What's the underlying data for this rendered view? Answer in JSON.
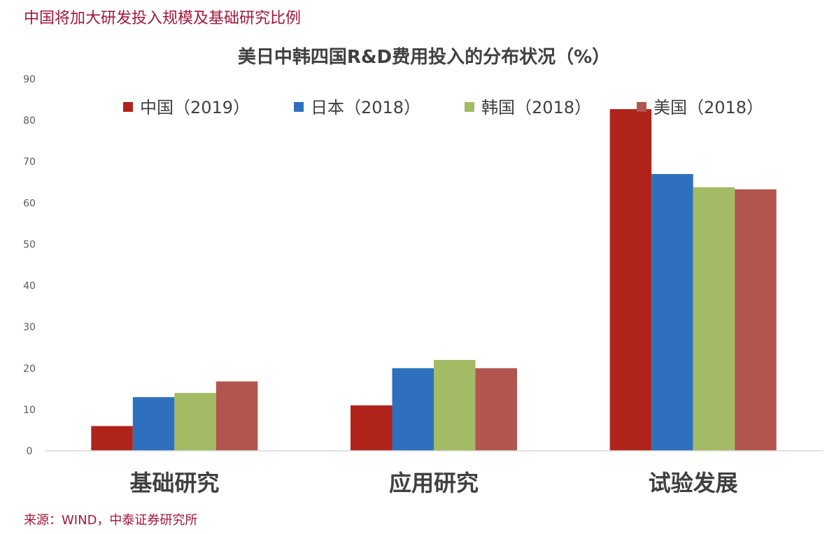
{
  "page": {
    "heading": "中国将加大研发投入规模及基础研究比例",
    "source": "来源：WIND，中泰证券研究所"
  },
  "chart_data": {
    "type": "bar",
    "title": "美日中韩四国R&D费用投入的分布状况（%）",
    "xlabel": "",
    "ylabel": "",
    "categories": [
      "基础研究",
      "应用研究",
      "试验发展"
    ],
    "series": [
      {
        "name": "中国（2019）",
        "color": "#b0231b",
        "values": [
          6.0,
          11.0,
          82.7
        ]
      },
      {
        "name": "日本（2018）",
        "color": "#2e70be",
        "values": [
          13.0,
          20.0,
          67.0
        ]
      },
      {
        "name": "韩国（2018）",
        "color": "#a2bb64",
        "values": [
          14.0,
          22.0,
          63.8
        ]
      },
      {
        "name": "美国（2018）",
        "color": "#b2554f",
        "values": [
          16.8,
          20.0,
          63.3
        ]
      }
    ],
    "ylim": [
      0,
      90
    ],
    "yticks": [
      0,
      10,
      20,
      30,
      40,
      50,
      60,
      70,
      80,
      90
    ],
    "grid": false,
    "legend": "top"
  }
}
